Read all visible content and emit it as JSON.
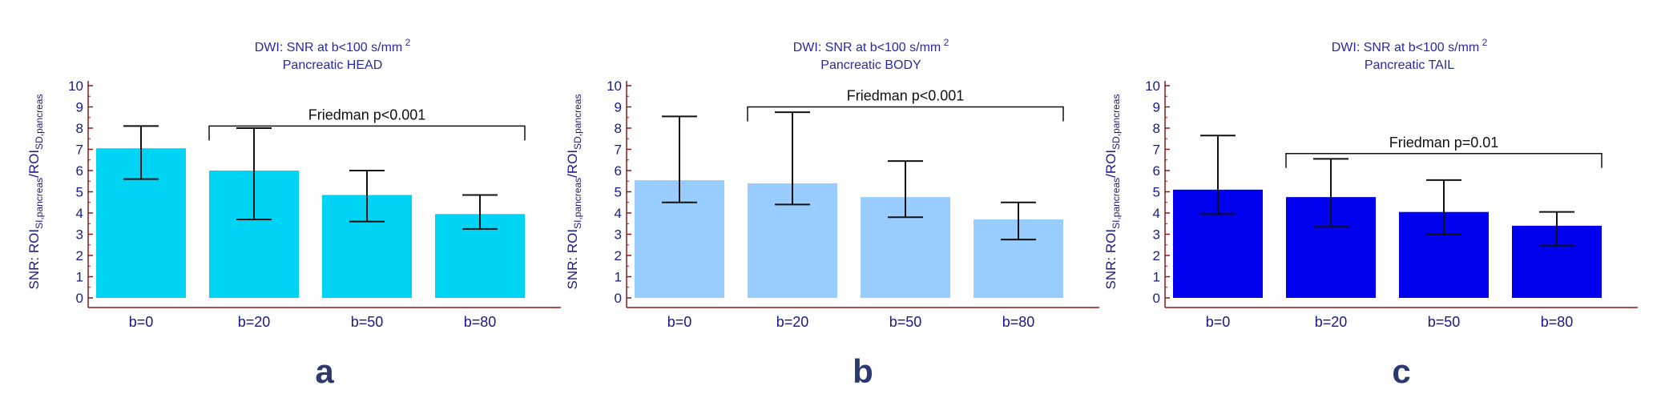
{
  "figure_letters": [
    "a",
    "b",
    "c"
  ],
  "chart_data": [
    {
      "type": "bar",
      "panel": "a",
      "title_line1": "DWI: SNR at b<100 s/mm",
      "title_sup": "2",
      "title_line2": "Pancreatic HEAD",
      "ylabel_main": "SNR: ROI",
      "ylabel_sub1": "SI,pancreas",
      "ylabel_mid": "/ROI",
      "ylabel_sub2": "SD,pancreas",
      "categories": [
        "b=0",
        "b=20",
        "b=50",
        "b=80"
      ],
      "values": [
        7.05,
        6.0,
        4.85,
        3.95
      ],
      "err_low": [
        5.6,
        3.7,
        3.6,
        3.25
      ],
      "err_high": [
        8.1,
        8.0,
        6.0,
        4.85
      ],
      "ylim": [
        0,
        10
      ],
      "yticks": [
        "0",
        "1",
        "2",
        "3",
        "4",
        "5",
        "6",
        "7",
        "8",
        "9",
        "10"
      ],
      "bar_color": "#00d4f5",
      "annotation": "Friedman p<0.001",
      "bracket_from": 1,
      "bracket_to": 3,
      "bracket_level": 8.1
    },
    {
      "type": "bar",
      "panel": "b",
      "title_line1": "DWI: SNR at b<100 s/mm",
      "title_sup": "2",
      "title_line2": "Pancreatic BODY",
      "ylabel_main": "SNR: ROI",
      "ylabel_sub1": "SI,pancreas",
      "ylabel_mid": "/ROI",
      "ylabel_sub2": "SD,pancreas",
      "categories": [
        "b=0",
        "b=20",
        "b=50",
        "b=80"
      ],
      "values": [
        5.55,
        5.4,
        4.75,
        3.7
      ],
      "err_low": [
        4.5,
        4.4,
        3.8,
        2.75
      ],
      "err_high": [
        8.55,
        8.75,
        6.45,
        4.5
      ],
      "ylim": [
        0,
        10
      ],
      "yticks": [
        "0",
        "1",
        "2",
        "3",
        "4",
        "5",
        "6",
        "7",
        "8",
        "9",
        "10"
      ],
      "bar_color": "#99ccff",
      "annotation": "Friedman p<0.001",
      "bracket_from": 1,
      "bracket_to": 3,
      "bracket_level": 9.0
    },
    {
      "type": "bar",
      "panel": "c",
      "title_line1": "DWI: SNR at b<100 s/mm",
      "title_sup": "2",
      "title_line2": "Pancreatic TAIL",
      "ylabel_main": "SNR: ROI",
      "ylabel_sub1": "SI,pancreas",
      "ylabel_mid": "/ROI",
      "ylabel_sub2": "SD,pancreas",
      "categories": [
        "b=0",
        "b=20",
        "b=50",
        "b=80"
      ],
      "values": [
        5.1,
        4.75,
        4.05,
        3.4
      ],
      "err_low": [
        3.95,
        3.35,
        3.0,
        2.45
      ],
      "err_high": [
        7.65,
        6.55,
        5.55,
        4.05
      ],
      "ylim": [
        0,
        10
      ],
      "yticks": [
        "0",
        "1",
        "2",
        "3",
        "4",
        "5",
        "6",
        "7",
        "8",
        "9",
        "10"
      ],
      "bar_color": "#0000ee",
      "annotation": "Friedman p=0.01",
      "bracket_from": 1,
      "bracket_to": 3,
      "bracket_level": 6.8
    }
  ]
}
